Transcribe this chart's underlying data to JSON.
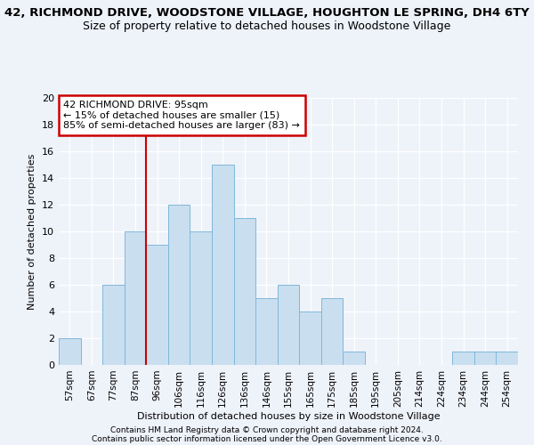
{
  "title": "42, RICHMOND DRIVE, WOODSTONE VILLAGE, HOUGHTON LE SPRING, DH4 6TY",
  "subtitle": "Size of property relative to detached houses in Woodstone Village",
  "xlabel": "Distribution of detached houses by size in Woodstone Village",
  "ylabel": "Number of detached properties",
  "categories": [
    "57sqm",
    "67sqm",
    "77sqm",
    "87sqm",
    "96sqm",
    "106sqm",
    "116sqm",
    "126sqm",
    "136sqm",
    "146sqm",
    "155sqm",
    "165sqm",
    "175sqm",
    "185sqm",
    "195sqm",
    "205sqm",
    "214sqm",
    "224sqm",
    "234sqm",
    "244sqm",
    "254sqm"
  ],
  "values": [
    2,
    0,
    6,
    10,
    9,
    12,
    10,
    15,
    11,
    5,
    6,
    4,
    5,
    1,
    0,
    0,
    0,
    0,
    1,
    1,
    1
  ],
  "bar_color": "#c9dff0",
  "bar_edge_color": "#7fb8db",
  "property_line_x": 3.5,
  "property_line_color": "#cc0000",
  "annotation_text": "42 RICHMOND DRIVE: 95sqm\n← 15% of detached houses are smaller (15)\n85% of semi-detached houses are larger (83) →",
  "annotation_box_color": "#cc0000",
  "ylim": [
    0,
    20
  ],
  "yticks": [
    0,
    2,
    4,
    6,
    8,
    10,
    12,
    14,
    16,
    18,
    20
  ],
  "background_color": "#eef2f9",
  "footer1": "Contains HM Land Registry data © Crown copyright and database right 2024.",
  "footer2": "Contains public sector information licensed under the Open Government Licence v3.0.",
  "title_fontsize": 9.5,
  "subtitle_fontsize": 9
}
